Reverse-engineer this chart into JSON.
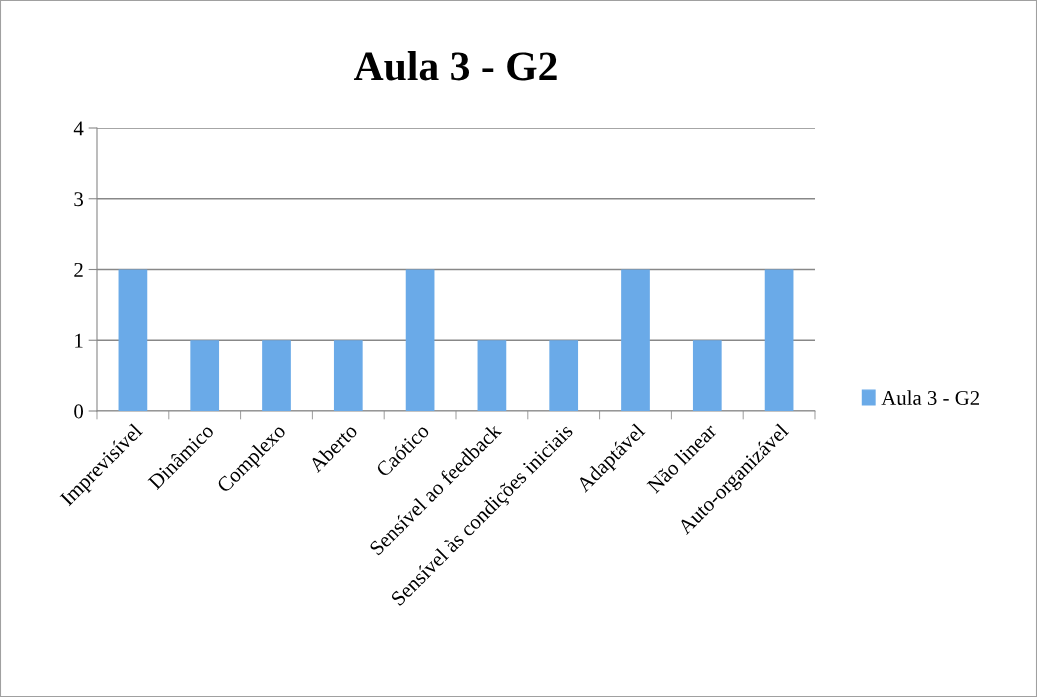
{
  "chart_data": {
    "type": "bar",
    "title": "Aula 3 - G2",
    "categories": [
      "Imprevisível",
      "Dinâmico",
      "Complexo",
      "Aberto",
      "Caótico",
      "Sensível ao feedback",
      "Sensível às condições iniciais",
      "Adaptável",
      "Não linear",
      "Auto-organizável"
    ],
    "series": [
      {
        "name": "Aula 3 - G2",
        "color": "#6aaae8",
        "values": [
          2,
          1,
          1,
          1,
          2,
          1,
          1,
          2,
          1,
          2
        ]
      }
    ],
    "ylim": [
      0,
      4
    ],
    "yticks": [
      0,
      1,
      2,
      3,
      4
    ],
    "grid": "y",
    "legend": "right"
  }
}
